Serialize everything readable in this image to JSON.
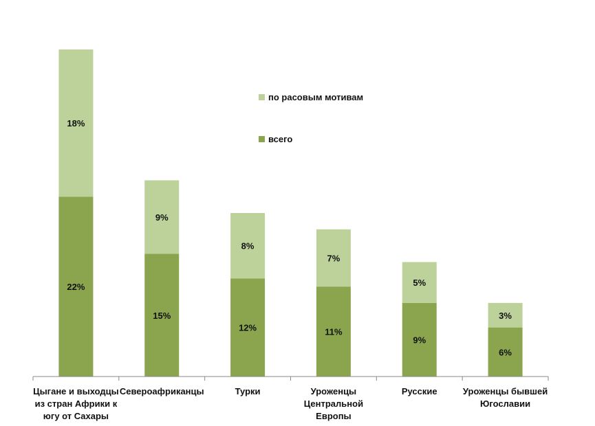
{
  "chart_data": {
    "type": "bar",
    "stacked": true,
    "categories": [
      [
        "Цыгане и выходцы",
        "из стран Африки к",
        "югу от Сахары"
      ],
      [
        "Североафриканцы"
      ],
      [
        "Турки"
      ],
      [
        "Уроженцы",
        "Центральной",
        "Европы"
      ],
      [
        "Русские"
      ],
      [
        "Уроженцы бывшей",
        "Югославии"
      ]
    ],
    "series": [
      {
        "name": "всего",
        "values": [
          22,
          15,
          12,
          11,
          9,
          6
        ],
        "color": "#8aa54e"
      },
      {
        "name": "по расовым мотивам",
        "values": [
          18,
          9,
          8,
          7,
          5,
          3
        ],
        "color": "#bcd29a"
      }
    ],
    "value_suffix": "%",
    "ylim": [
      0,
      40
    ],
    "legend_position": "top-center",
    "grid": false,
    "title": "",
    "xlabel": "",
    "ylabel": ""
  }
}
